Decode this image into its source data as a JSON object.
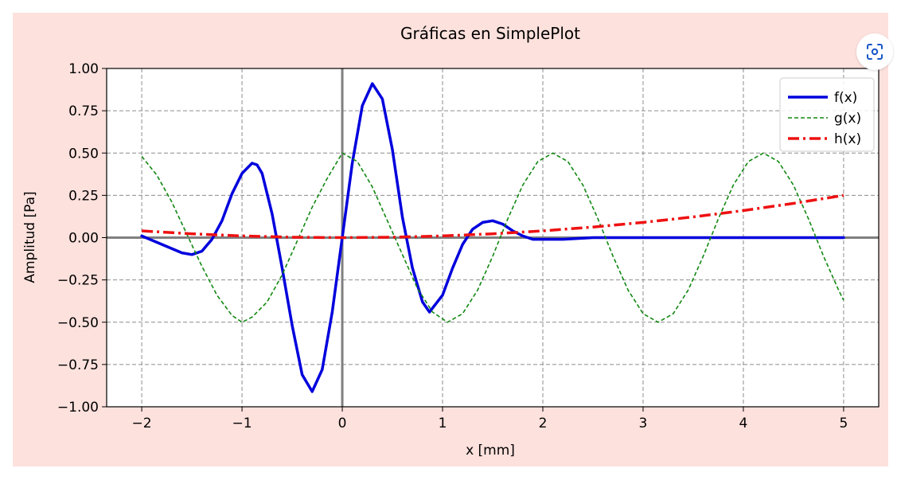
{
  "chart_data": {
    "type": "line",
    "title": "Gráficas en SimplePlot",
    "xlabel": "x [mm]",
    "ylabel": "Amplitud [Pa]",
    "xlim": [
      -2.35,
      5.35
    ],
    "ylim": [
      -1.0,
      1.0
    ],
    "x_ticks": [
      -2,
      -1,
      0,
      1,
      2,
      3,
      4,
      5
    ],
    "x_tick_labels": [
      "−2",
      "−1",
      "0",
      "1",
      "2",
      "3",
      "4",
      "5"
    ],
    "y_ticks": [
      1.0,
      0.75,
      0.5,
      0.25,
      0.0,
      -0.25,
      -0.5,
      -0.75,
      -1.0
    ],
    "y_tick_labels": [
      "1.00",
      "0.75",
      "0.50",
      "0.25",
      "0.00",
      "−0.25",
      "−0.50",
      "−0.75",
      "−1.00"
    ],
    "grid": true,
    "legend_position": "top-right",
    "series": [
      {
        "name": "f(x)",
        "color": "#0000dd",
        "style": "solid",
        "x": [
          -2.0,
          -1.8,
          -1.6,
          -1.5,
          -1.4,
          -1.3,
          -1.2,
          -1.1,
          -1.0,
          -0.9,
          -0.85,
          -0.8,
          -0.7,
          -0.6,
          -0.5,
          -0.4,
          -0.3,
          -0.2,
          -0.1,
          0.0,
          0.1,
          0.2,
          0.3,
          0.4,
          0.5,
          0.6,
          0.7,
          0.8,
          0.87,
          1.0,
          1.1,
          1.2,
          1.3,
          1.4,
          1.5,
          1.6,
          1.7,
          1.8,
          1.9,
          2.0,
          2.2,
          2.5,
          3.0,
          5.0
        ],
        "y": [
          0.01,
          -0.04,
          -0.09,
          -0.1,
          -0.08,
          -0.01,
          0.1,
          0.26,
          0.38,
          0.44,
          0.43,
          0.38,
          0.14,
          -0.18,
          -0.52,
          -0.81,
          -0.91,
          -0.78,
          -0.44,
          0.0,
          0.44,
          0.78,
          0.91,
          0.82,
          0.52,
          0.12,
          -0.18,
          -0.38,
          -0.44,
          -0.34,
          -0.18,
          -0.04,
          0.05,
          0.09,
          0.1,
          0.08,
          0.04,
          0.01,
          -0.01,
          -0.01,
          -0.01,
          0.0,
          0.0,
          0.0
        ]
      },
      {
        "name": "g(x)",
        "color": "#118811",
        "style": "dashed",
        "x": [
          -2.0,
          -1.85,
          -1.7,
          -1.55,
          -1.4,
          -1.25,
          -1.1,
          -1.0,
          -0.9,
          -0.75,
          -0.6,
          -0.45,
          -0.3,
          -0.15,
          0.0,
          0.15,
          0.3,
          0.45,
          0.6,
          0.75,
          0.9,
          1.05,
          1.2,
          1.35,
          1.5,
          1.65,
          1.8,
          1.95,
          2.1,
          2.25,
          2.4,
          2.55,
          2.7,
          2.85,
          3.0,
          3.15,
          3.3,
          3.45,
          3.6,
          3.75,
          3.9,
          4.05,
          4.2,
          4.35,
          4.5,
          4.65,
          4.8,
          4.95,
          5.0
        ],
        "y": [
          0.48,
          0.37,
          0.21,
          0.02,
          -0.17,
          -0.34,
          -0.46,
          -0.5,
          -0.47,
          -0.38,
          -0.22,
          -0.02,
          0.18,
          0.35,
          0.5,
          0.45,
          0.3,
          0.1,
          -0.1,
          -0.3,
          -0.44,
          -0.5,
          -0.45,
          -0.31,
          -0.11,
          0.11,
          0.31,
          0.45,
          0.5,
          0.45,
          0.31,
          0.11,
          -0.11,
          -0.31,
          -0.45,
          -0.5,
          -0.45,
          -0.31,
          -0.11,
          0.11,
          0.31,
          0.45,
          0.5,
          0.45,
          0.31,
          0.11,
          -0.11,
          -0.31,
          -0.37
        ]
      },
      {
        "name": "h(x)",
        "color": "#ee1111",
        "style": "dashdot",
        "x": [
          -2.0,
          -1.5,
          -1.0,
          -0.5,
          0.0,
          0.5,
          1.0,
          1.5,
          2.0,
          2.5,
          3.0,
          3.5,
          4.0,
          4.5,
          5.0
        ],
        "y": [
          0.04,
          0.0225,
          0.01,
          0.0025,
          0.0,
          0.0025,
          0.01,
          0.0225,
          0.04,
          0.0625,
          0.09,
          0.1225,
          0.16,
          0.2025,
          0.25
        ]
      }
    ]
  },
  "toolbar": {
    "lens_icon": "visual-search-icon"
  }
}
